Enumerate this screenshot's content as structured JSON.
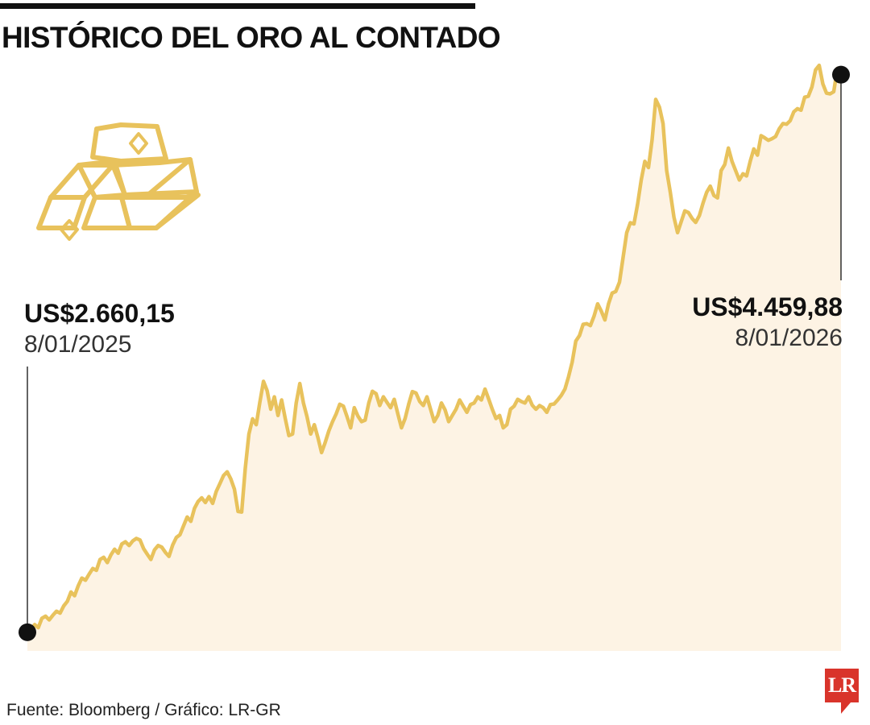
{
  "chart_data": {
    "type": "area",
    "title": "HISTÓRICO DEL ORO AL CONTADO",
    "xlabel": "",
    "ylabel": "",
    "ylim": [
      2600,
      4550
    ],
    "series": [
      {
        "values": [
          2660.15,
          2668,
          2685,
          2675,
          2705,
          2712,
          2700,
          2715,
          2728,
          2722,
          2745,
          2760,
          2790,
          2778,
          2810,
          2835,
          2828,
          2848,
          2866,
          2860,
          2895,
          2902,
          2885,
          2910,
          2928,
          2915,
          2945,
          2952,
          2940,
          2955,
          2963,
          2958,
          2930,
          2912,
          2895,
          2926,
          2940,
          2935,
          2918,
          2905,
          2942,
          2966,
          2975,
          3004,
          3032,
          3018,
          3060,
          3082,
          3094,
          3079,
          3098,
          3076,
          3115,
          3140,
          3166,
          3178,
          3155,
          3122,
          3050,
          3048,
          3190,
          3300,
          3349,
          3330,
          3403,
          3470,
          3440,
          3380,
          3420,
          3360,
          3410,
          3350,
          3295,
          3300,
          3400,
          3463,
          3400,
          3355,
          3300,
          3330,
          3288,
          3240,
          3273,
          3310,
          3340,
          3365,
          3396,
          3390,
          3356,
          3320,
          3385,
          3358,
          3340,
          3345,
          3400,
          3438,
          3430,
          3392,
          3420,
          3402,
          3385,
          3412,
          3365,
          3320,
          3350,
          3397,
          3437,
          3432,
          3405,
          3392,
          3420,
          3380,
          3340,
          3360,
          3400,
          3378,
          3340,
          3360,
          3380,
          3410,
          3390,
          3370,
          3395,
          3400,
          3420,
          3410,
          3445,
          3413,
          3380,
          3350,
          3360,
          3320,
          3330,
          3380,
          3390,
          3412,
          3405,
          3400,
          3420,
          3393,
          3380,
          3392,
          3385,
          3370,
          3395,
          3397,
          3410,
          3425,
          3445,
          3485,
          3532,
          3600,
          3618,
          3654,
          3656,
          3650,
          3680,
          3720,
          3697,
          3668,
          3720,
          3755,
          3760,
          3790,
          3870,
          3950,
          3982,
          3978,
          4042,
          4120,
          4180,
          4160,
          4250,
          4380,
          4355,
          4302,
          4150,
          4080,
          4000,
          3950,
          3985,
          4020,
          4015,
          3996,
          3983,
          4005,
          4045,
          4080,
          4100,
          4070,
          4062,
          4150,
          4170,
          4223,
          4180,
          4150,
          4120,
          4140,
          4133,
          4180,
          4220,
          4200,
          4263,
          4256,
          4248,
          4253,
          4260,
          4285,
          4302,
          4300,
          4311,
          4340,
          4350,
          4345,
          4387,
          4390,
          4420,
          4475,
          4490,
          4430,
          4400,
          4398,
          4405,
          4480,
          4459.88
        ]
      }
    ],
    "annotations": [
      {
        "value": "US$2.660,15",
        "date": "8/01/2025"
      },
      {
        "value": "US$4.459,88",
        "date": "8/01/2026"
      }
    ],
    "source": "Fuente: Bloomberg / Gráfico: LR-GR",
    "colors": {
      "line": "#e8c25c",
      "fill": "#fdf3e4",
      "marker": "#111111"
    },
    "icon": "gold-bars-icon",
    "logo": "LR"
  }
}
